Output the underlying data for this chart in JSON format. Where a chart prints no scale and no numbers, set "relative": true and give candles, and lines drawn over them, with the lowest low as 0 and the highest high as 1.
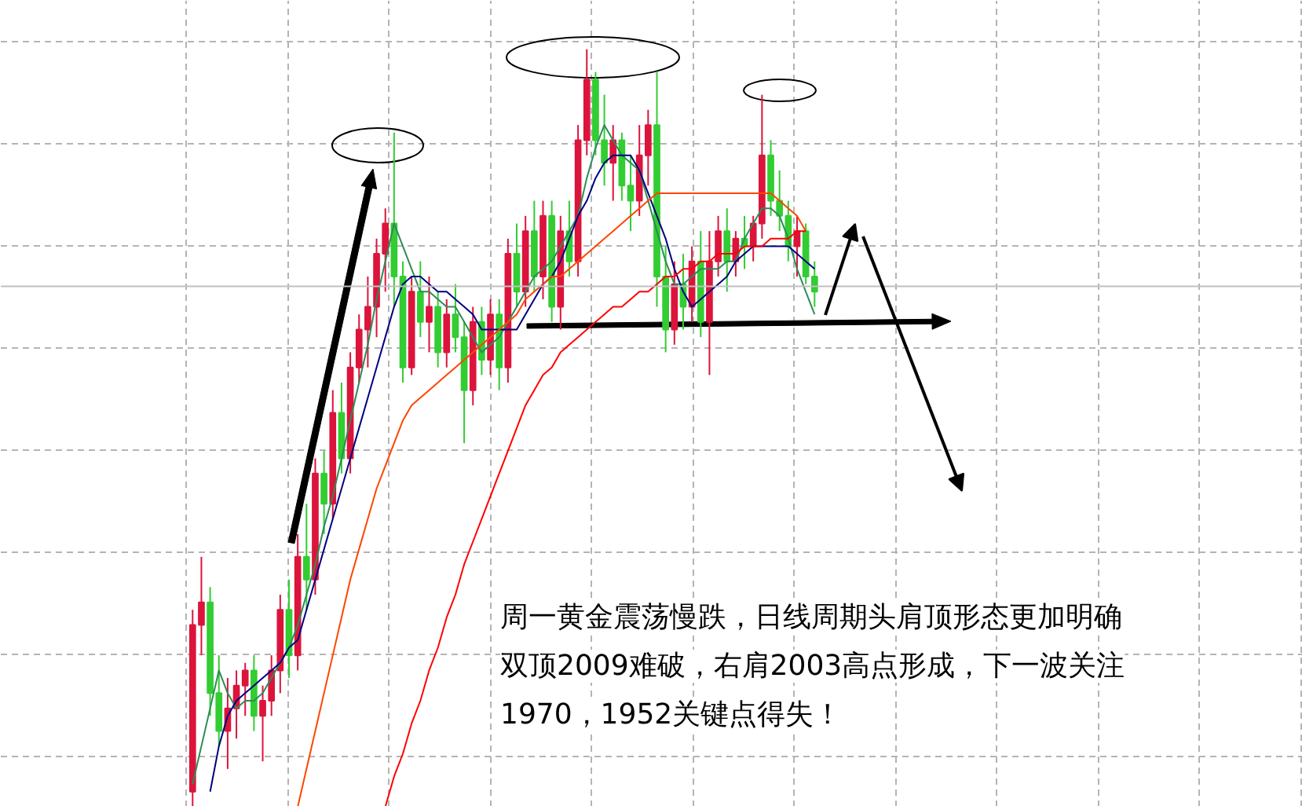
{
  "chart_data": {
    "type": "candlestick",
    "relative": true,
    "grid": true,
    "tick_labels": false,
    "categories": [
      null,
      null,
      null,
      null,
      null,
      null,
      null,
      null,
      null,
      null,
      null,
      null,
      null,
      null,
      null,
      null,
      null,
      null,
      null,
      null,
      null,
      null,
      null,
      null,
      null,
      null,
      null,
      null,
      null,
      null,
      null,
      null,
      null,
      null,
      null,
      null,
      null,
      null,
      null,
      null,
      null,
      null,
      null,
      null,
      null,
      null,
      null,
      null,
      null,
      null,
      null,
      null,
      null,
      null,
      null,
      null,
      null,
      null,
      null,
      null,
      null,
      null,
      null,
      null,
      null,
      null,
      null,
      null,
      null,
      null,
      null,
      null
    ],
    "ohlc": [
      [
        0.02,
        0.26,
        0.0,
        0.24
      ],
      [
        0.24,
        0.33,
        0.2,
        0.27
      ],
      [
        0.27,
        0.29,
        0.12,
        0.15
      ],
      [
        0.15,
        0.2,
        0.08,
        0.1
      ],
      [
        0.1,
        0.17,
        0.05,
        0.13
      ],
      [
        0.13,
        0.18,
        0.09,
        0.16
      ],
      [
        0.16,
        0.19,
        0.12,
        0.18
      ],
      [
        0.18,
        0.2,
        0.1,
        0.12
      ],
      [
        0.12,
        0.16,
        0.06,
        0.14
      ],
      [
        0.14,
        0.2,
        0.12,
        0.18
      ],
      [
        0.18,
        0.28,
        0.15,
        0.26
      ],
      [
        0.26,
        0.3,
        0.17,
        0.2
      ],
      [
        0.2,
        0.36,
        0.18,
        0.33
      ],
      [
        0.33,
        0.4,
        0.26,
        0.3
      ],
      [
        0.3,
        0.46,
        0.28,
        0.44
      ],
      [
        0.44,
        0.47,
        0.36,
        0.4
      ],
      [
        0.4,
        0.55,
        0.38,
        0.52
      ],
      [
        0.52,
        0.56,
        0.44,
        0.46
      ],
      [
        0.46,
        0.6,
        0.44,
        0.58
      ],
      [
        0.58,
        0.65,
        0.56,
        0.63
      ],
      [
        0.63,
        0.7,
        0.58,
        0.66
      ],
      [
        0.66,
        0.75,
        0.62,
        0.73
      ],
      [
        0.73,
        0.79,
        0.68,
        0.77
      ],
      [
        0.77,
        0.89,
        0.66,
        0.7
      ],
      [
        0.7,
        0.72,
        0.56,
        0.58
      ],
      [
        0.58,
        0.7,
        0.57,
        0.68
      ],
      [
        0.68,
        0.72,
        0.62,
        0.64
      ],
      [
        0.64,
        0.7,
        0.6,
        0.66
      ],
      [
        0.66,
        0.68,
        0.58,
        0.6
      ],
      [
        0.6,
        0.67,
        0.58,
        0.65
      ],
      [
        0.65,
        0.69,
        0.6,
        0.62
      ],
      [
        0.62,
        0.64,
        0.48,
        0.55
      ],
      [
        0.55,
        0.66,
        0.53,
        0.64
      ],
      [
        0.64,
        0.66,
        0.57,
        0.59
      ],
      [
        0.59,
        0.67,
        0.57,
        0.65
      ],
      [
        0.65,
        0.67,
        0.55,
        0.58
      ],
      [
        0.58,
        0.75,
        0.56,
        0.73
      ],
      [
        0.73,
        0.77,
        0.66,
        0.68
      ],
      [
        0.68,
        0.78,
        0.66,
        0.76
      ],
      [
        0.76,
        0.8,
        0.68,
        0.7
      ],
      [
        0.7,
        0.8,
        0.67,
        0.78
      ],
      [
        0.78,
        0.8,
        0.64,
        0.66
      ],
      [
        0.66,
        0.78,
        0.63,
        0.76
      ],
      [
        0.76,
        0.8,
        0.7,
        0.72
      ],
      [
        0.72,
        0.9,
        0.7,
        0.88
      ],
      [
        0.88,
        1.0,
        0.86,
        0.96
      ],
      [
        0.96,
        0.97,
        0.86,
        0.88
      ],
      [
        0.88,
        0.94,
        0.82,
        0.85
      ],
      [
        0.85,
        0.9,
        0.8,
        0.88
      ],
      [
        0.88,
        0.89,
        0.8,
        0.82
      ],
      [
        0.82,
        0.86,
        0.76,
        0.8
      ],
      [
        0.8,
        0.9,
        0.78,
        0.86
      ],
      [
        0.86,
        0.92,
        0.82,
        0.9
      ],
      [
        0.9,
        0.97,
        0.66,
        0.7
      ],
      [
        0.7,
        0.74,
        0.6,
        0.63
      ],
      [
        0.63,
        0.72,
        0.61,
        0.69
      ],
      [
        0.69,
        0.73,
        0.63,
        0.66
      ],
      [
        0.66,
        0.74,
        0.64,
        0.72
      ],
      [
        0.72,
        0.76,
        0.62,
        0.64
      ],
      [
        0.64,
        0.76,
        0.57,
        0.72
      ],
      [
        0.72,
        0.78,
        0.7,
        0.76
      ],
      [
        0.76,
        0.79,
        0.68,
        0.72
      ],
      [
        0.72,
        0.76,
        0.7,
        0.75
      ],
      [
        0.75,
        0.78,
        0.71,
        0.74
      ],
      [
        0.74,
        0.78,
        0.72,
        0.77
      ],
      [
        0.77,
        0.94,
        0.75,
        0.86
      ],
      [
        0.86,
        0.88,
        0.78,
        0.8
      ],
      [
        0.8,
        0.84,
        0.76,
        0.78
      ],
      [
        0.78,
        0.8,
        0.72,
        0.74
      ],
      [
        0.74,
        0.78,
        0.7,
        0.76
      ],
      [
        0.76,
        0.77,
        0.69,
        0.7
      ],
      [
        0.7,
        0.72,
        0.66,
        0.68
      ]
    ],
    "colors": [
      "#dc143c",
      "#dc143c",
      "#32cd32",
      "#32cd32",
      "#dc143c",
      "#dc143c",
      "#dc143c",
      "#32cd32",
      "#dc143c",
      "#dc143c",
      "#dc143c",
      "#32cd32",
      "#dc143c",
      "#32cd32",
      "#dc143c",
      "#32cd32",
      "#dc143c",
      "#32cd32",
      "#dc143c",
      "#dc143c",
      "#dc143c",
      "#dc143c",
      "#dc143c",
      "#32cd32",
      "#32cd32",
      "#dc143c",
      "#32cd32",
      "#dc143c",
      "#32cd32",
      "#dc143c",
      "#32cd32",
      "#32cd32",
      "#dc143c",
      "#32cd32",
      "#dc143c",
      "#32cd32",
      "#dc143c",
      "#32cd32",
      "#dc143c",
      "#32cd32",
      "#dc143c",
      "#32cd32",
      "#dc143c",
      "#32cd32",
      "#dc143c",
      "#dc143c",
      "#32cd32",
      "#32cd32",
      "#dc143c",
      "#32cd32",
      "#32cd32",
      "#dc143c",
      "#dc143c",
      "#32cd32",
      "#32cd32",
      "#dc143c",
      "#32cd32",
      "#dc143c",
      "#32cd32",
      "#dc143c",
      "#dc143c",
      "#32cd32",
      "#dc143c",
      "#32cd32",
      "#dc143c",
      "#dc143c",
      "#32cd32",
      "#32cd32",
      "#32cd32",
      "#dc143c",
      "#32cd32",
      "#32cd32"
    ],
    "series": [
      {
        "type": "line",
        "color": "#2e8b57",
        "values": [
          0.03,
          0.08,
          0.13,
          0.18,
          0.15,
          0.13,
          0.14,
          0.14,
          0.15,
          0.17,
          0.19,
          0.21,
          0.24,
          0.28,
          0.32,
          0.37,
          0.41,
          0.46,
          0.51,
          0.56,
          0.61,
          0.67,
          0.72,
          0.77,
          0.74,
          0.71,
          0.68,
          0.68,
          0.67,
          0.66,
          0.66,
          0.64,
          0.62,
          0.6,
          0.61,
          0.62,
          0.64,
          0.66,
          0.68,
          0.7,
          0.71,
          0.72,
          0.74,
          0.76,
          0.78,
          0.83,
          0.87,
          0.9,
          0.88,
          0.86,
          0.85,
          0.84,
          0.8,
          0.76,
          0.72,
          0.69,
          0.69,
          0.7,
          0.71,
          0.71,
          0.71,
          0.72,
          0.72,
          0.75,
          0.77,
          0.79,
          0.79,
          0.78,
          0.75,
          0.71,
          0.68,
          0.65
        ]
      },
      {
        "type": "line",
        "color": "#000080",
        "values": [
          null,
          null,
          0.02,
          0.08,
          0.12,
          0.14,
          0.15,
          0.16,
          0.17,
          0.18,
          0.19,
          0.21,
          0.22,
          0.26,
          0.3,
          0.34,
          0.38,
          0.42,
          0.46,
          0.5,
          0.54,
          0.58,
          0.62,
          0.66,
          0.69,
          0.7,
          0.7,
          0.69,
          0.68,
          0.68,
          0.67,
          0.66,
          0.65,
          0.63,
          0.63,
          0.63,
          0.63,
          0.63,
          0.65,
          0.67,
          0.69,
          0.7,
          0.72,
          0.75,
          0.78,
          0.8,
          0.83,
          0.85,
          0.86,
          0.86,
          0.86,
          0.84,
          0.81,
          0.78,
          0.75,
          0.71,
          0.68,
          0.66,
          0.67,
          0.68,
          0.69,
          0.7,
          0.72,
          0.73,
          0.74,
          0.74,
          0.74,
          0.74,
          0.74,
          0.73,
          0.72,
          0.71
        ]
      },
      {
        "type": "line",
        "color": "#ff4500",
        "values": [
          null,
          null,
          null,
          null,
          null,
          null,
          null,
          null,
          null,
          null,
          null,
          null,
          0.0,
          0.05,
          0.1,
          0.15,
          0.2,
          0.25,
          0.3,
          0.34,
          0.38,
          0.42,
          0.45,
          0.48,
          0.51,
          0.53,
          0.54,
          0.55,
          0.56,
          0.57,
          0.58,
          0.59,
          0.6,
          0.61,
          0.62,
          0.63,
          0.64,
          0.65,
          0.67,
          0.68,
          0.69,
          0.7,
          0.7,
          0.71,
          0.72,
          0.73,
          0.74,
          0.75,
          0.76,
          0.77,
          0.78,
          0.79,
          0.8,
          0.81,
          0.81,
          0.81,
          0.81,
          0.81,
          0.81,
          0.81,
          0.81,
          0.81,
          0.81,
          0.81,
          0.81,
          0.81,
          0.81,
          0.8,
          0.79,
          0.78,
          0.76,
          null
        ]
      },
      {
        "type": "line",
        "color": "#ff0000",
        "values": [
          null,
          null,
          null,
          null,
          null,
          null,
          null,
          null,
          null,
          null,
          null,
          null,
          null,
          null,
          null,
          null,
          null,
          null,
          null,
          null,
          null,
          null,
          0.0,
          0.04,
          0.07,
          0.11,
          0.14,
          0.18,
          0.21,
          0.25,
          0.28,
          0.32,
          0.35,
          0.38,
          0.41,
          0.44,
          0.47,
          0.5,
          0.53,
          0.55,
          0.57,
          0.58,
          0.6,
          0.61,
          0.62,
          0.63,
          0.64,
          0.65,
          0.66,
          0.66,
          0.67,
          0.68,
          0.68,
          0.69,
          0.7,
          0.7,
          0.71,
          0.71,
          0.72,
          0.72,
          0.73,
          0.73,
          0.73,
          0.74,
          0.74,
          0.74,
          0.75,
          0.75,
          0.75,
          0.76,
          0.76,
          null
        ]
      }
    ],
    "ref_lines": [
      {
        "axis": "y",
        "value": 0.687,
        "color": "#c0c0c0"
      }
    ],
    "annotations": [
      "周一黄金震荡慢跌，日线周期头肩顶形态更加明确",
      "双顶2009难破，右肩2003高点形成，下一波关注",
      "1970，1952关键点得失！"
    ]
  }
}
